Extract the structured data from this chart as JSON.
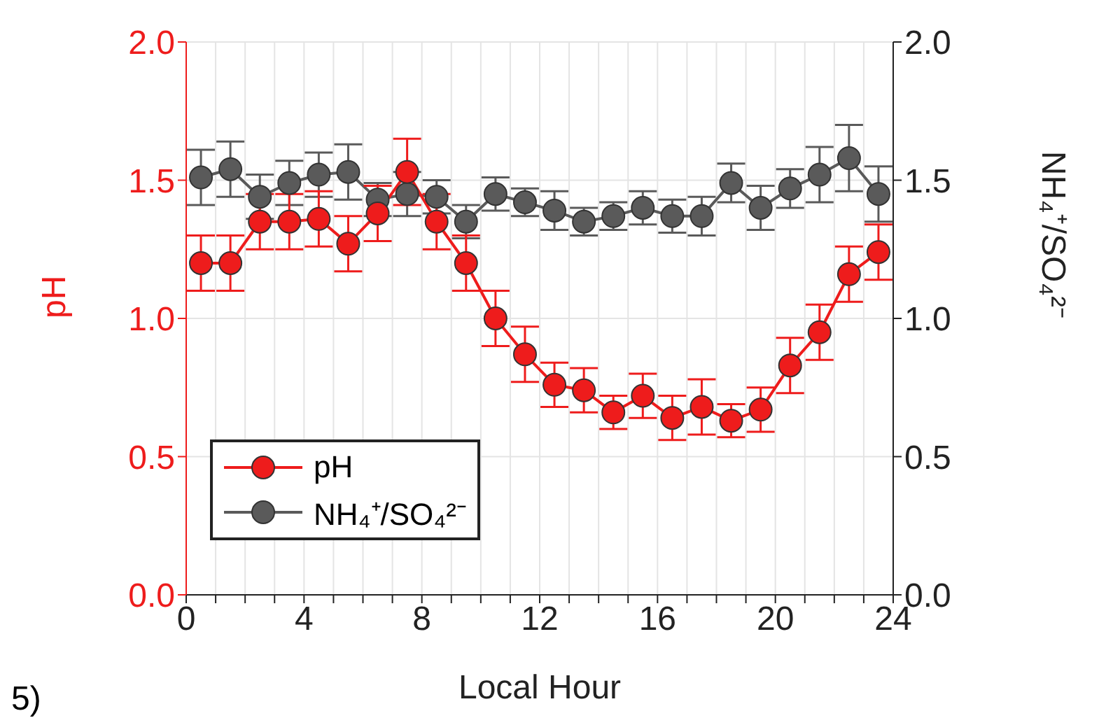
{
  "chart_data": {
    "type": "line",
    "xlabel": "Local Hour",
    "ylabel": "pH",
    "y2label": "NH₄⁺/SO₄²⁻",
    "x": [
      0.5,
      1.5,
      2.5,
      3.5,
      4.5,
      5.5,
      6.5,
      7.5,
      8.5,
      9.5,
      10.5,
      11.5,
      12.5,
      13.5,
      14.5,
      15.5,
      16.5,
      17.5,
      18.5,
      19.5,
      20.5,
      21.5,
      22.5,
      23.5
    ],
    "series": [
      {
        "name": "pH",
        "color": "#ee1c1c",
        "values": [
          1.2,
          1.2,
          1.35,
          1.35,
          1.36,
          1.27,
          1.38,
          1.53,
          1.35,
          1.2,
          1.0,
          0.87,
          0.76,
          0.74,
          0.66,
          0.72,
          0.64,
          0.68,
          0.63,
          0.67,
          0.83,
          0.95,
          1.16,
          1.24
        ],
        "errors": [
          0.1,
          0.1,
          0.1,
          0.1,
          0.1,
          0.1,
          0.1,
          0.12,
          0.1,
          0.1,
          0.1,
          0.1,
          0.08,
          0.08,
          0.06,
          0.08,
          0.08,
          0.1,
          0.06,
          0.08,
          0.1,
          0.1,
          0.1,
          0.1
        ]
      },
      {
        "name": "NH₄⁺/SO₄²⁻",
        "color": "#5a5a5a",
        "axis": "y2",
        "values": [
          1.51,
          1.54,
          1.44,
          1.49,
          1.52,
          1.53,
          1.43,
          1.45,
          1.44,
          1.35,
          1.45,
          1.42,
          1.39,
          1.35,
          1.37,
          1.4,
          1.37,
          1.37,
          1.49,
          1.4,
          1.47,
          1.52,
          1.58,
          1.45
        ],
        "errors": [
          0.1,
          0.1,
          0.08,
          0.08,
          0.08,
          0.1,
          0.06,
          0.08,
          0.06,
          0.06,
          0.06,
          0.05,
          0.07,
          0.05,
          0.05,
          0.06,
          0.06,
          0.07,
          0.07,
          0.08,
          0.07,
          0.1,
          0.12,
          0.1
        ]
      }
    ],
    "xlim": [
      0,
      24
    ],
    "xticks": [
      0,
      {
        "value": 1,
        "label": null
      },
      {
        "value": 2,
        "label": null
      },
      {
        "value": 3,
        "label": null
      },
      4,
      {
        "value": 5,
        "label": null
      },
      {
        "value": 6,
        "label": null
      },
      {
        "value": 7,
        "label": null
      },
      8,
      {
        "value": 9,
        "label": null
      },
      {
        "value": 10,
        "label": null
      },
      {
        "value": 11,
        "label": null
      },
      12,
      {
        "value": 13,
        "label": null
      },
      {
        "value": 14,
        "label": null
      },
      {
        "value": 15,
        "label": null
      },
      16,
      {
        "value": 17,
        "label": null
      },
      {
        "value": 18,
        "label": null
      },
      {
        "value": 19,
        "label": null
      },
      20,
      {
        "value": 21,
        "label": null
      },
      {
        "value": 22,
        "label": null
      },
      {
        "value": 23,
        "label": null
      },
      24
    ],
    "ylim": [
      0,
      2
    ],
    "yticks": [
      {
        "value": 0,
        "label": "0.0"
      },
      {
        "value": 0.5,
        "label": "0.5"
      },
      {
        "value": 1,
        "label": "1.0"
      },
      {
        "value": 1.5,
        "label": "1.5"
      },
      {
        "value": 2,
        "label": "2.0"
      }
    ],
    "y2lim": [
      0,
      2
    ],
    "y2ticks": [
      {
        "value": 0,
        "label": "0.0"
      },
      {
        "value": 0.5,
        "label": "0.5"
      },
      {
        "value": 1,
        "label": "1.0"
      },
      {
        "value": 1.5,
        "label": "1.5"
      },
      {
        "value": 2,
        "label": "2.0"
      }
    ],
    "grid": true,
    "legend": "bottom left",
    "marker": "circle",
    "line_style": "solid",
    "annotations": [
      "5)"
    ]
  }
}
